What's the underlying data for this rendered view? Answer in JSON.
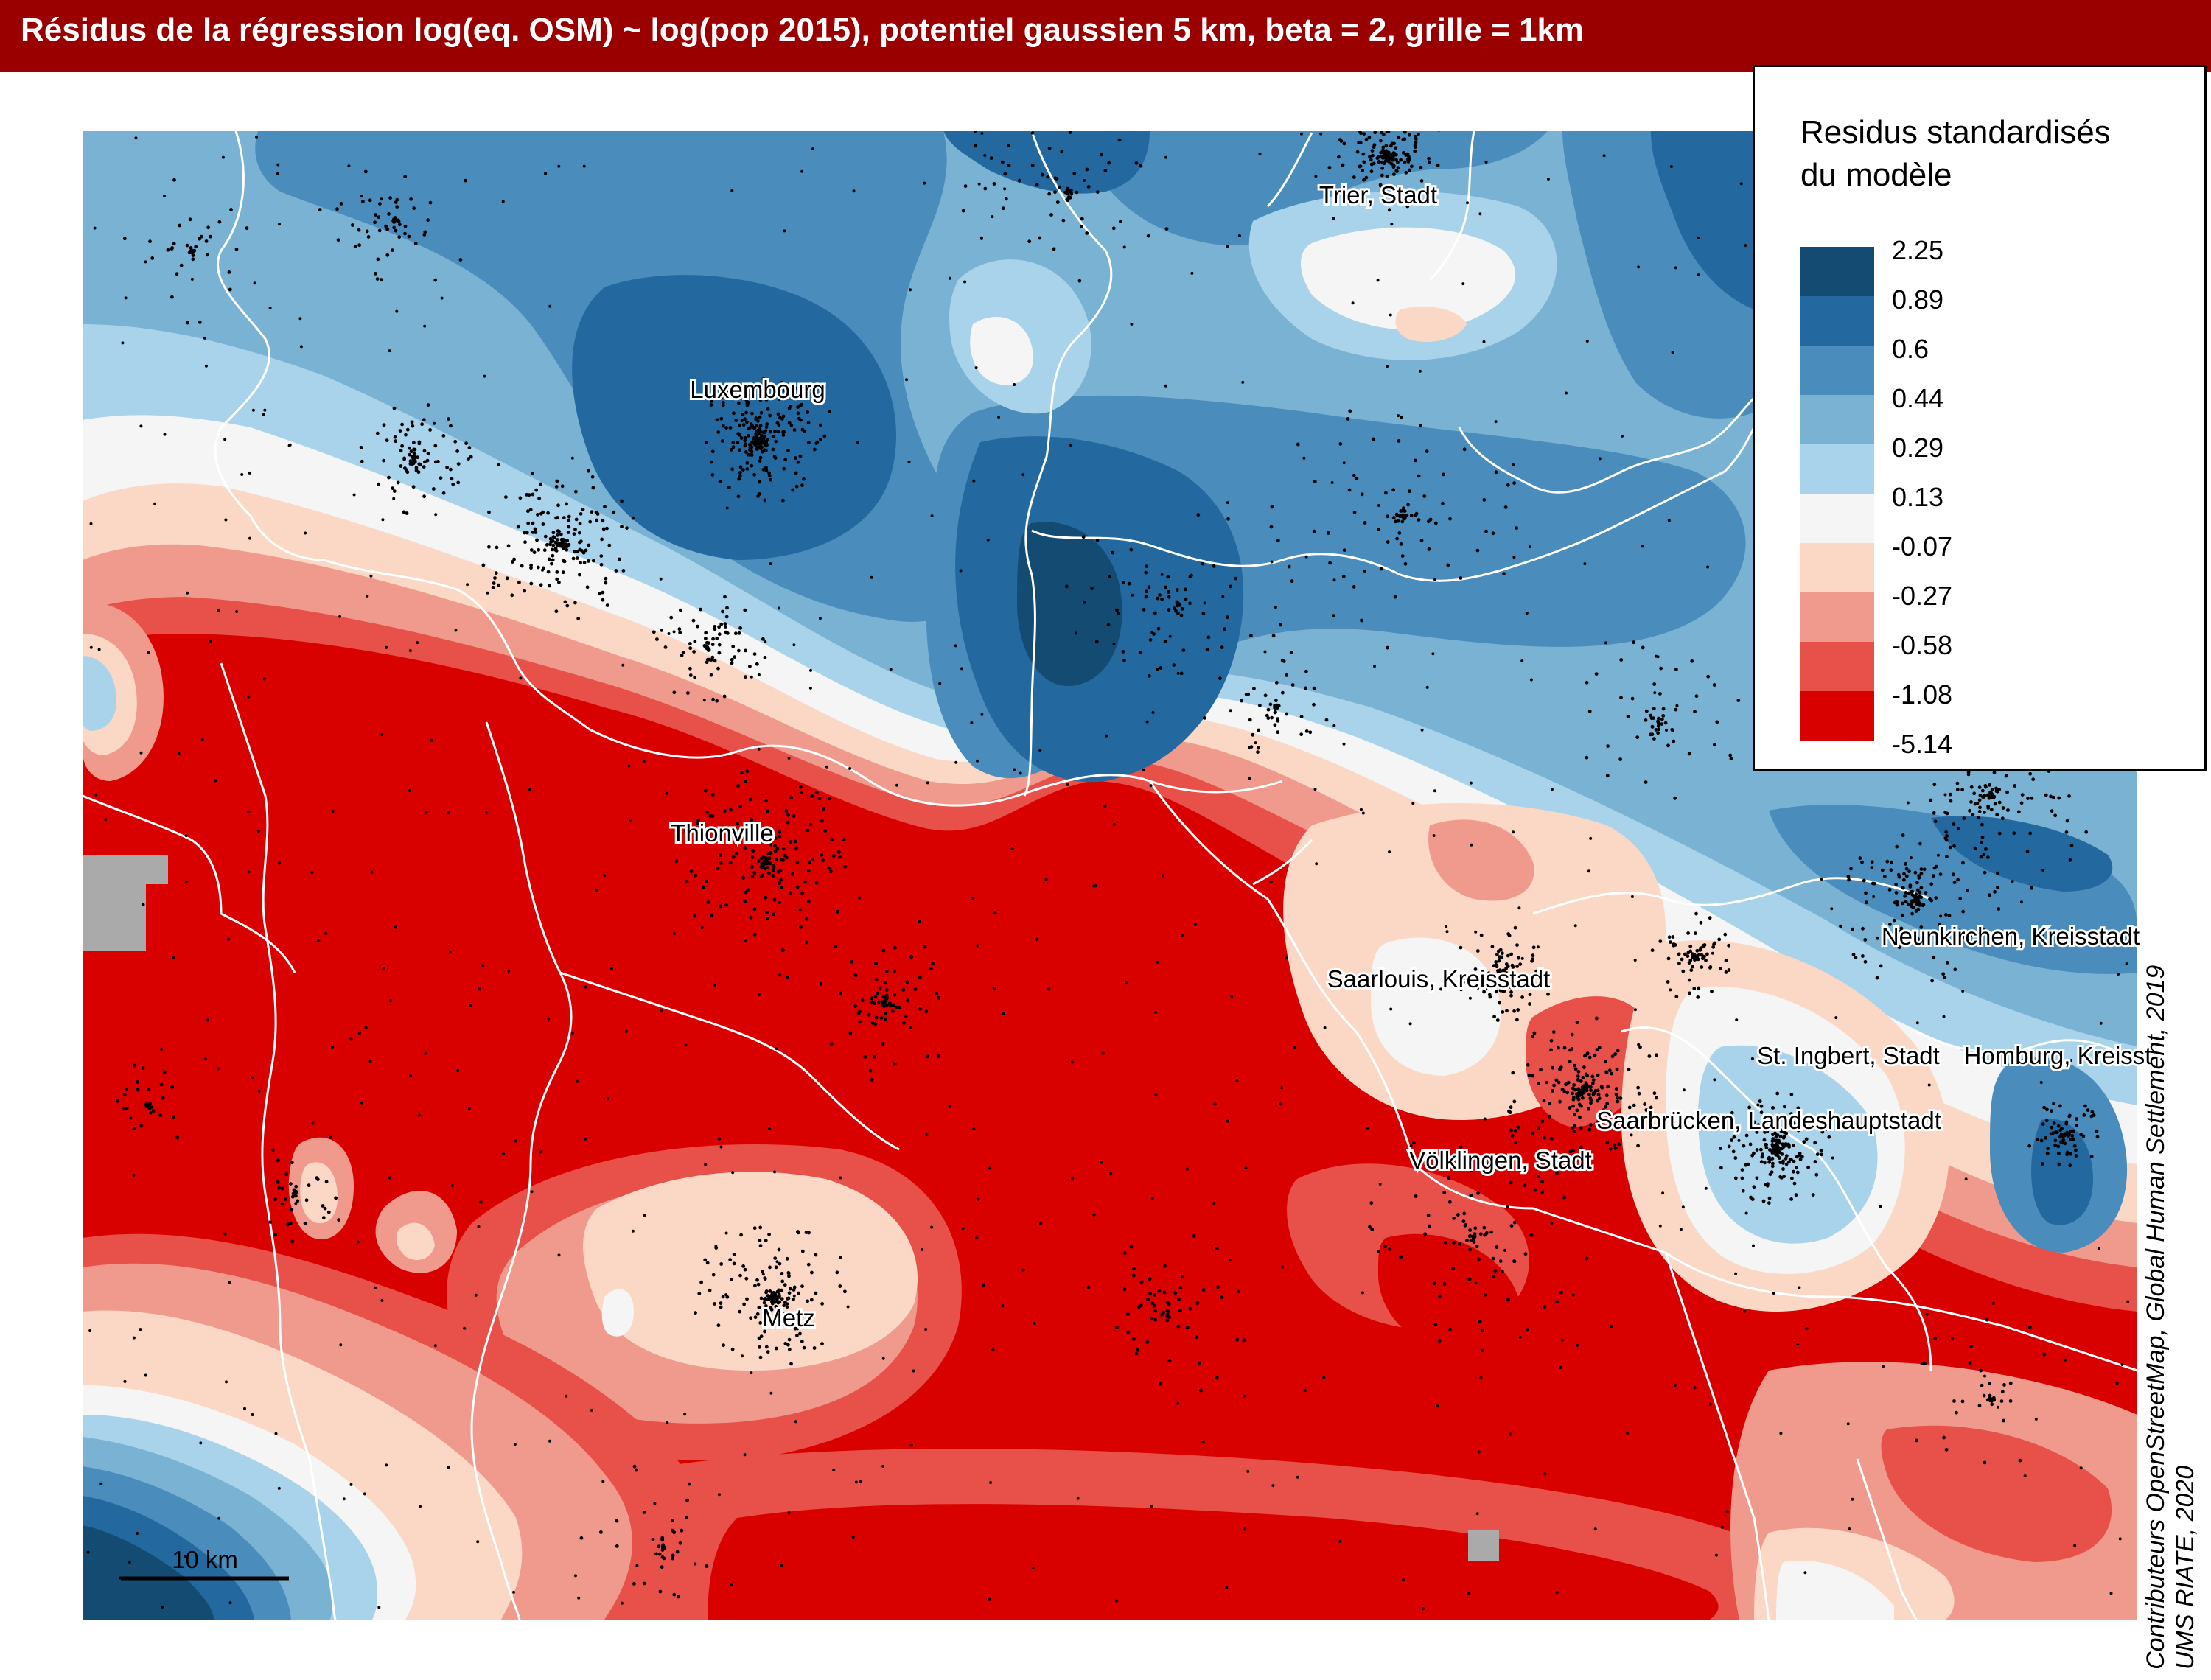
{
  "title": "Résidus de la régression log(eq. OSM) ~ log(pop 2015), potentiel gaussien 5 km, beta = 2, grille = 1km",
  "legend": {
    "title": "Residus standardisés\ndu modèle",
    "bins": [
      {
        "label": "2.25",
        "color": "#134b73"
      },
      {
        "label": "0.89",
        "color": "#2369a0"
      },
      {
        "label": "0.6",
        "color": "#4a8cbc"
      },
      {
        "label": "0.44",
        "color": "#7ab2d4"
      },
      {
        "label": "0.29",
        "color": "#a9d3ea"
      },
      {
        "label": "0.13",
        "color": "#f5f5f5"
      },
      {
        "label": "-0.07",
        "color": "#fbd8c6"
      },
      {
        "label": "-0.27",
        "color": "#f09a8e"
      },
      {
        "label": "-0.58",
        "color": "#e8504a"
      },
      {
        "label": "-1.08",
        "color": "#d90000"
      },
      {
        "label": "-5.14",
        "color": ""
      }
    ]
  },
  "cities": [
    {
      "name": "Trier, Stadt"
    },
    {
      "name": "Luxembourg"
    },
    {
      "name": "Thionville"
    },
    {
      "name": "Saarlouis, Kreisstadt"
    },
    {
      "name": "Neunkirchen, Kreisstadt"
    },
    {
      "name": "St. Ingbert, Stadt"
    },
    {
      "name": "Homburg, Kreisst"
    },
    {
      "name": "Saarbrücken, Landeshauptstadt"
    },
    {
      "name": "Völklingen, Stadt"
    },
    {
      "name": "Metz"
    }
  ],
  "scale_bar": {
    "label": "10 km"
  },
  "credits": {
    "line1": "Contributeurs OpenStreetMap, Global Human Settlement, 2019",
    "line2": "UMS RIATE, 2020"
  },
  "colors": {
    "no_data": "#aaaaaa",
    "boundaries": "#ffffff",
    "title_bar": "#9b0000"
  }
}
